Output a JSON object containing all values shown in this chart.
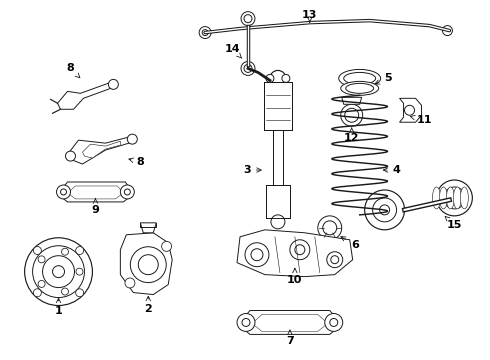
{
  "background_color": "#ffffff",
  "fig_width": 4.9,
  "fig_height": 3.6,
  "dpi": 100,
  "line_color": "#1a1a1a",
  "label_fontsize": 8,
  "label_color": "#000000",
  "lw": 0.7
}
